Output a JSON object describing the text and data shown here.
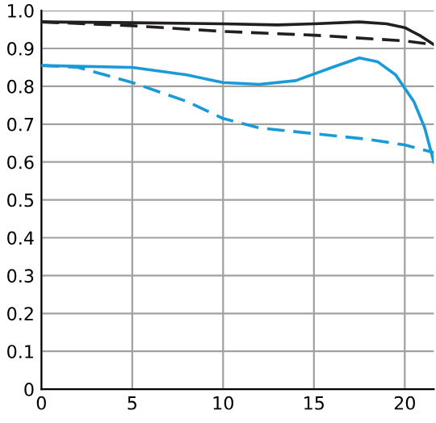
{
  "chart_data": {
    "type": "line",
    "xlim": [
      0,
      21.6
    ],
    "ylim": [
      0,
      1.0
    ],
    "xticks": [
      0,
      5,
      10,
      15,
      20
    ],
    "yticks": [
      0,
      0.1,
      0.2,
      0.3,
      0.4,
      0.5,
      0.6,
      0.7,
      0.8,
      0.9,
      {
        "value": 1.0,
        "label": "1.0"
      }
    ],
    "grid": true,
    "marker": "none",
    "series": [
      {
        "color": "#231f20",
        "line_style": "solid",
        "x": [
          0,
          5,
          10,
          13,
          15,
          17.5,
          19,
          20,
          20.8,
          21.6
        ],
        "values": [
          0.97,
          0.968,
          0.965,
          0.962,
          0.965,
          0.97,
          0.965,
          0.955,
          0.935,
          0.91
        ]
      },
      {
        "color": "#231f20",
        "line_style": "dashed",
        "x": [
          0,
          5,
          10,
          15,
          20,
          21.6
        ],
        "values": [
          0.97,
          0.96,
          0.945,
          0.935,
          0.92,
          0.91
        ]
      },
      {
        "color": "#1a9ad6",
        "line_style": "solid",
        "x": [
          0,
          5,
          8,
          10,
          12,
          14,
          16,
          17.5,
          18.5,
          19.5,
          20.5,
          21.1,
          21.6
        ],
        "values": [
          0.855,
          0.85,
          0.83,
          0.81,
          0.805,
          0.815,
          0.85,
          0.875,
          0.865,
          0.83,
          0.76,
          0.69,
          0.6
        ]
      },
      {
        "color": "#1a9ad6",
        "line_style": "dashed",
        "x": [
          0,
          2,
          5,
          8,
          10,
          12,
          15,
          18,
          20,
          21.6
        ],
        "values": [
          0.855,
          0.85,
          0.81,
          0.76,
          0.715,
          0.69,
          0.675,
          0.66,
          0.645,
          0.625
        ]
      }
    ]
  }
}
